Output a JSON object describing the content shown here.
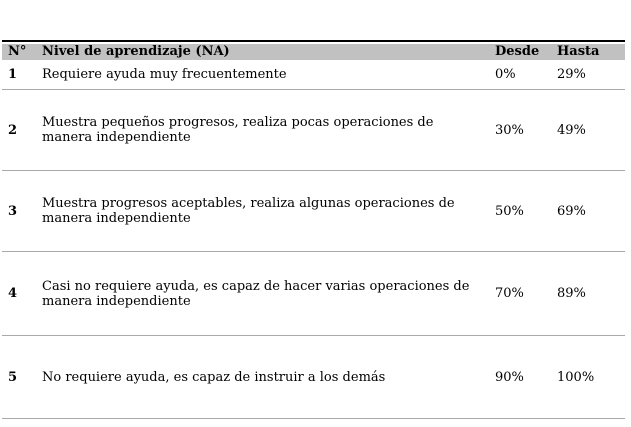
{
  "document": {
    "colors": {
      "header_bg": "#c1c1c1",
      "top_rule": "#000000",
      "row_separator": "#a9a9a9"
    },
    "table": {
      "columns": {
        "num": "N°",
        "nivel": "Nivel de aprendizaje (NA)",
        "desde": "Desde",
        "hasta": "Hasta"
      },
      "rows": [
        {
          "n": "1",
          "nivel": "Requiere ayuda muy frecuentemente",
          "desde": "0%",
          "hasta": "29%"
        },
        {
          "n": "2",
          "nivel": "Muestra pequeños progresos, realiza pocas operaciones de manera independiente",
          "desde": "30%",
          "hasta": "49%"
        },
        {
          "n": "3",
          "nivel": "Muestra progresos aceptables, realiza algunas operaciones de manera independiente",
          "desde": "50%",
          "hasta": "69%"
        },
        {
          "n": "4",
          "nivel": "Casi no requiere ayuda, es capaz de hacer varias operaciones de manera independiente",
          "desde": "70%",
          "hasta": "89%"
        },
        {
          "n": "5",
          "nivel": "No requiere ayuda, es capaz de instruir a los demás",
          "desde": "90%",
          "hasta": "100%"
        }
      ]
    }
  }
}
